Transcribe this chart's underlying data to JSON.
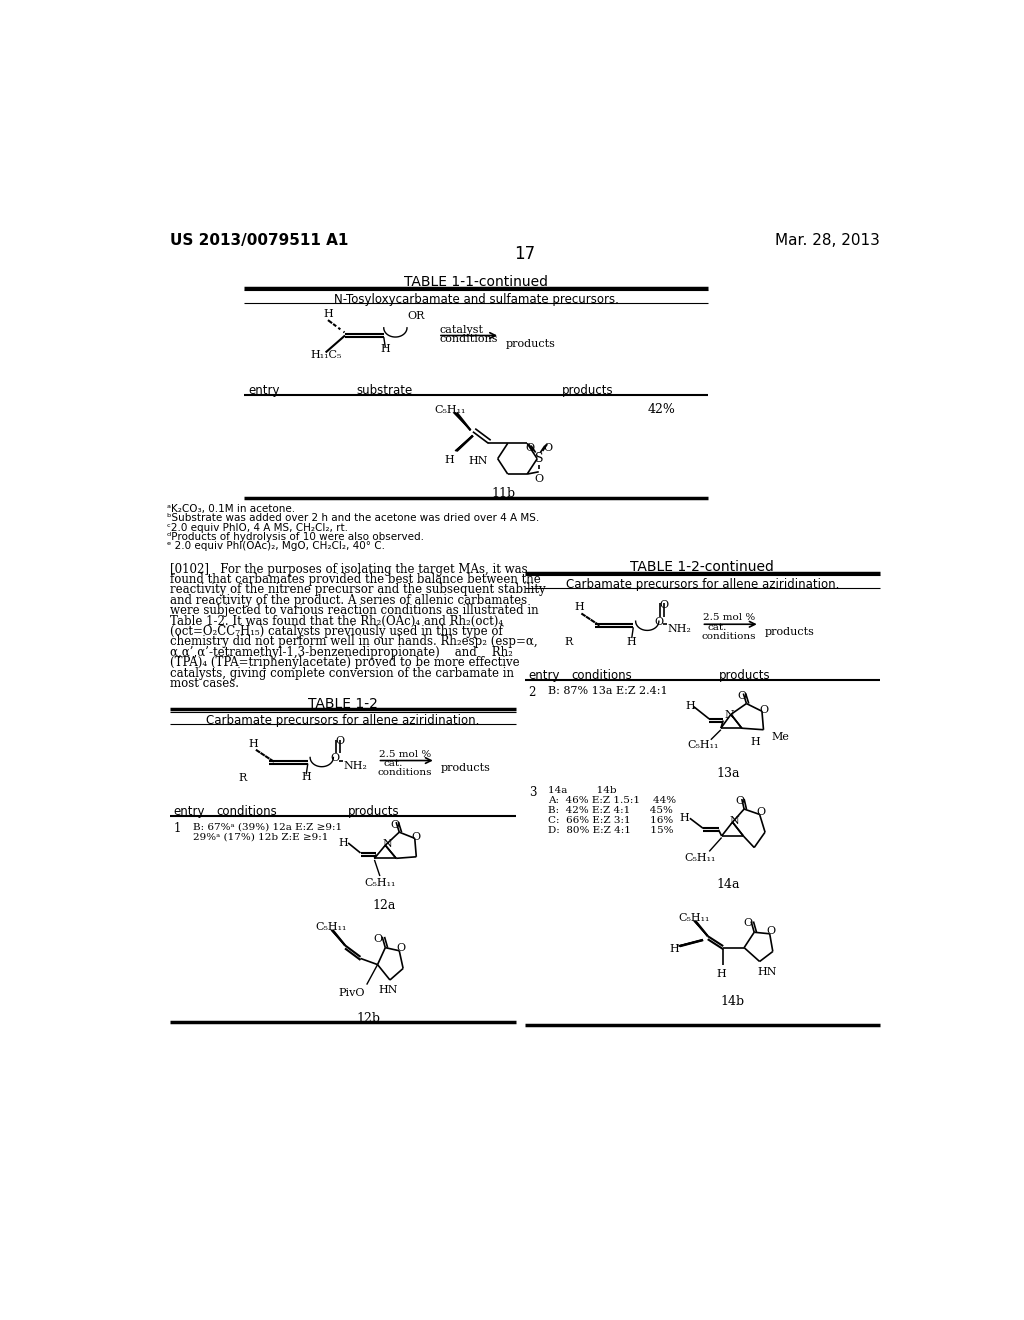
{
  "background_color": "#ffffff",
  "header_left": "US 2013/0079511 A1",
  "header_right": "Mar. 28, 2013",
  "page_number": "17",
  "table1_title": "TABLE 1-1-continued",
  "table1_subtitle": "N-Tosyloxycarbamate and sulfamate precursors.",
  "table1_col1": "entry",
  "table1_col2": "substrate",
  "table1_col3": "products",
  "yield_11b": "42%",
  "compound_11b": "11b",
  "footnotes": [
    "ᵃK₂CO₃, 0.1M in acetone.",
    "ᵇSubstrate was added over 2 h and the acetone was dried over 4 A MS.",
    "ᶜ2.0 equiv PhIO, 4 A MS, CH₂Cl₂, rt.",
    "ᵈProducts of hydrolysis of 10 were also observed.",
    "ᵉ 2.0 equiv PhI(OAc)₂, MgO, CH₂Cl₂, 40° C."
  ],
  "table2_title": "TABLE 1-2",
  "table2_subtitle": "Carbamate precursors for allene aziridination.",
  "table2_col1": "entry",
  "table2_col2": "conditions",
  "table2_col3": "products",
  "entry1_cond_line1": "B: 67%ᵃ (39%) 12a E:Z ≥9:1",
  "entry1_cond_line2": "29%ᵃ (17%) 12b Z:E ≥9:1",
  "entry1_compound1": "12a",
  "entry1_compound2": "12b",
  "table2r_title": "TABLE 1-2-continued",
  "table2r_subtitle": "Carbamate precursors for allene aziridination.",
  "entry2_conditions": "B: 87% 13a E:Z 2.4:1",
  "entry2_compound": "13a",
  "entry3_cond_line0": "14a         14b",
  "entry3_cond_line1": "A:  46% E:Z 1.5:1    44%",
  "entry3_cond_line2": "B:  42% E:Z 4:1      45%",
  "entry3_cond_line3": "C:  66% E:Z 3:1      16%",
  "entry3_cond_line4": "D:  80% E:Z 4:1      15%",
  "entry3_compound1": "14a",
  "entry3_compound2": "14b",
  "C5H11": "C₅H₁₁",
  "H11C5": "H₁₁C₅",
  "para_lines": [
    "[0102]   For the purposes of isolating the target MAs, it was",
    "found that carbamates provided the best balance between the",
    "reactivity of the nitrene precursor and the subsequent stability",
    "and reactivity of the product. A series of allenic carbamates",
    "were subjected to various reaction conditions as illustrated in",
    "Table 1-2. It was found that the Rh₂(OAc)₄ and Rh₂(oct)₄",
    "(oct=O₂CC₇H₁₅) catalysts previously used in this type of",
    "chemistry did not perform well in our hands. Rh₂esp₂ (esp=α,",
    "α,α’,α’-tetramethyl-1,3-benzenedipropionate)    and    Rh₂",
    "(TPA)₄ (TPA=triphenylacetate) proved to be more effective",
    "catalysts, giving complete conversion of the carbamate in",
    "most cases."
  ]
}
